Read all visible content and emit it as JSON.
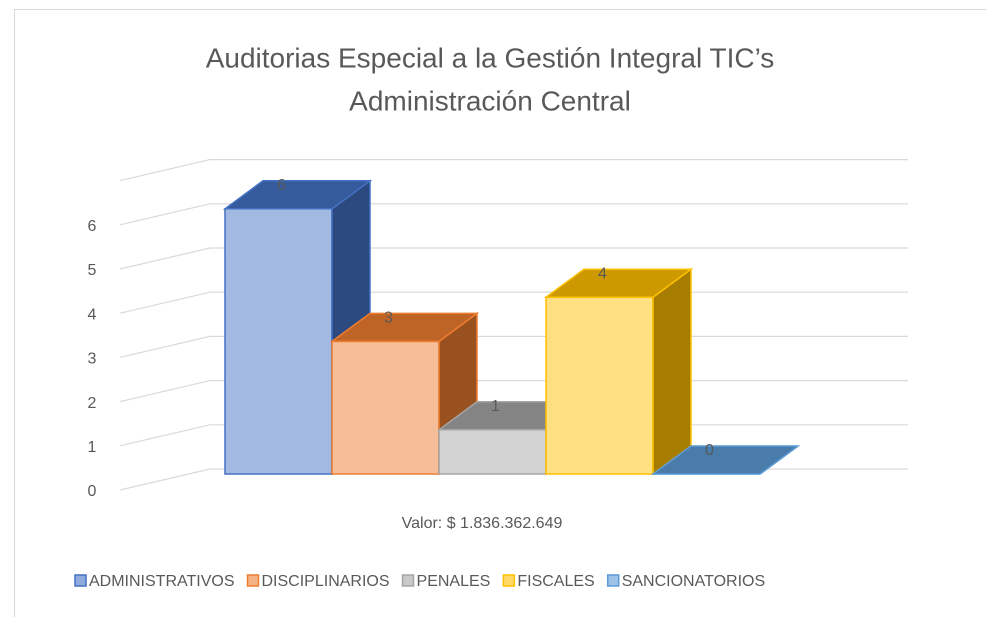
{
  "chart_data": {
    "type": "bar3d",
    "title": [
      "Auditorias Especial a la Gestión Integral TIC’s",
      "Administración Central"
    ],
    "categories": [
      "Valor:  $ 1.836.362.649"
    ],
    "series": [
      {
        "name": "ADMINISTRATIVOS",
        "color": "#4472c4",
        "values": [
          6
        ]
      },
      {
        "name": "DISCIPLINARIOS",
        "color": "#ed7d31",
        "values": [
          3
        ]
      },
      {
        "name": "PENALES",
        "color": "#a5a5a5",
        "values": [
          1
        ]
      },
      {
        "name": "FISCALES",
        "color": "#ffc000",
        "values": [
          4
        ]
      },
      {
        "name": "SANCIONATORIOS",
        "color": "#5b9bd5",
        "values": [
          0
        ]
      }
    ],
    "ylim": [
      0,
      7
    ],
    "yticks": [
      0,
      1,
      2,
      3,
      4,
      5,
      6
    ],
    "grid": true,
    "legend": "bottom"
  }
}
